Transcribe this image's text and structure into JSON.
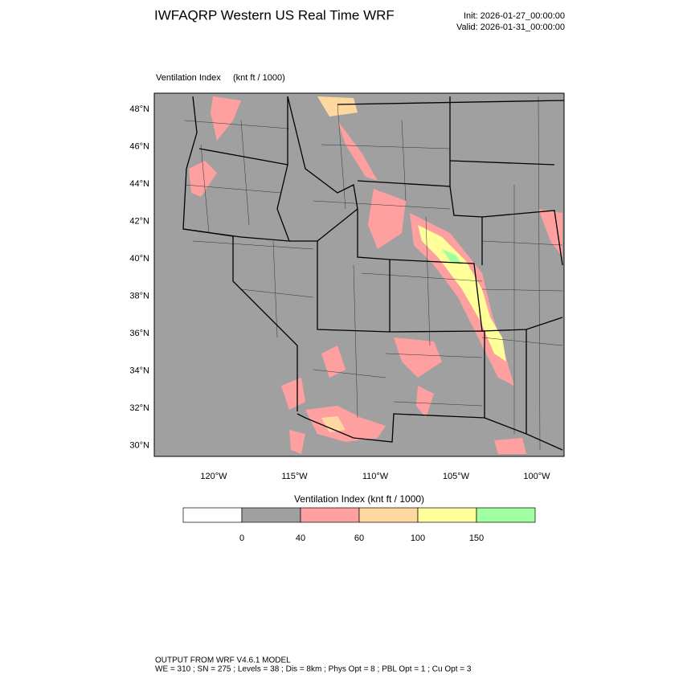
{
  "header": {
    "title": "IWFAQRP Western US Real Time WRF",
    "init": "Init: 2026-01-27_00:00:00",
    "valid": "Valid: 2026-01-31_00:00:00"
  },
  "map": {
    "field_label": "Ventilation Index",
    "units": "(knt ft / 1000)",
    "lat_labels": [
      "48°N",
      "46°N",
      "44°N",
      "42°N",
      "40°N",
      "38°N",
      "36°N",
      "34°N",
      "32°N",
      "30°N"
    ],
    "lon_labels": [
      "120°W",
      "115°W",
      "110°W",
      "105°W",
      "100°W"
    ]
  },
  "colorbar": {
    "title": "Ventilation Index   (knt ft / 1000)",
    "colors": [
      "#ffffff",
      "#a0a0a0",
      "#ffa0a0",
      "#ffd8a0",
      "#ffff99",
      "#a0ffa0"
    ],
    "labels": [
      0,
      40,
      60,
      100,
      150
    ]
  },
  "footer": {
    "line1": "OUTPUT FROM WRF V4.6.1 MODEL",
    "line2": "WE = 310 ; SN = 275 ; Levels = 38 ; Dis = 8km ; Phys Opt = 8 ; PBL Opt = 1 ; Cu Opt = 3"
  }
}
